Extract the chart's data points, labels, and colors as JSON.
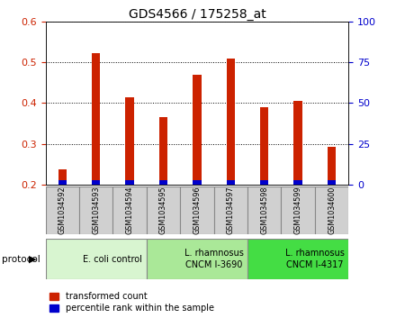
{
  "title": "GDS4566 / 175258_at",
  "samples": [
    "GSM1034592",
    "GSM1034593",
    "GSM1034594",
    "GSM1034595",
    "GSM1034596",
    "GSM1034597",
    "GSM1034598",
    "GSM1034599",
    "GSM1034600"
  ],
  "transformed_count": [
    0.238,
    0.521,
    0.415,
    0.365,
    0.47,
    0.508,
    0.39,
    0.405,
    0.292
  ],
  "percentile_vals": [
    0.025,
    0.055,
    0.03,
    0.022,
    0.052,
    0.065,
    0.018,
    0.03,
    0.018
  ],
  "ylim": [
    0.2,
    0.6
  ],
  "ylim_right": [
    0,
    100
  ],
  "yticks_left": [
    0.2,
    0.3,
    0.4,
    0.5,
    0.6
  ],
  "yticks_right": [
    0,
    25,
    50,
    75,
    100
  ],
  "bar_color": "#cc2200",
  "percentile_color": "#0000cc",
  "bar_width": 0.25,
  "groups": [
    {
      "label": "E. coli control",
      "start": 0,
      "end": 3,
      "color": "#d8f5d0"
    },
    {
      "label": "L. rhamnosus\nCNCM I-3690",
      "start": 3,
      "end": 6,
      "color": "#aae898"
    },
    {
      "label": "L. rhamnosus\nCNCM I-4317",
      "start": 6,
      "end": 9,
      "color": "#44dd44"
    }
  ],
  "legend_labels": [
    "transformed count",
    "percentile rank within the sample"
  ],
  "legend_colors": [
    "#cc2200",
    "#0000cc"
  ],
  "left_tick_color": "#cc2200",
  "right_tick_color": "#0000cc",
  "protocol_label": "protocol",
  "sample_box_color": "#d0d0d0",
  "sample_box_edge": "#888888"
}
